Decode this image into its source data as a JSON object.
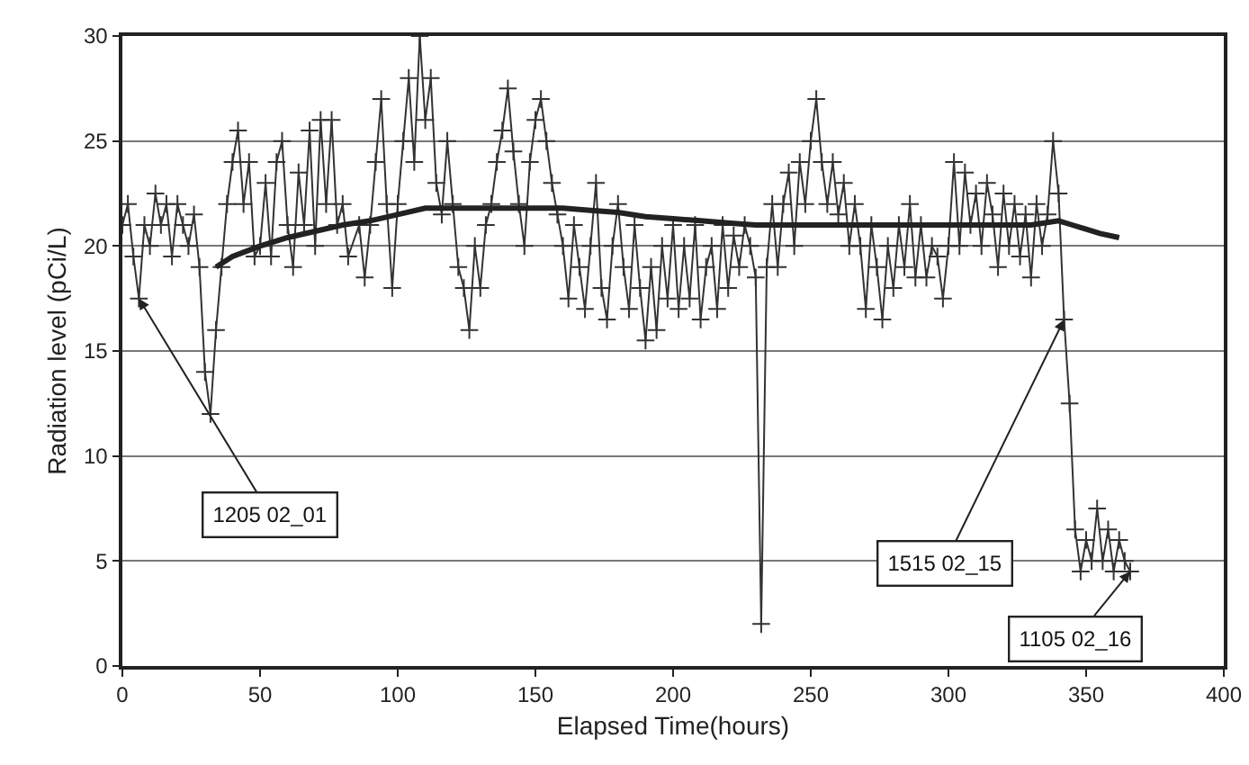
{
  "chart_data": {
    "type": "line",
    "xlabel": "Elapsed Time(hours)",
    "ylabel": "Radiation level (pCi/L)",
    "xlim": [
      0,
      400
    ],
    "xticks": [
      0,
      50,
      100,
      150,
      200,
      250,
      300,
      350,
      400
    ],
    "ylim": [
      0,
      30
    ],
    "yticks": [
      0,
      5,
      10,
      15,
      20,
      25,
      30
    ],
    "grid": "y",
    "marker": "cross",
    "series": [
      {
        "color": "#333333",
        "x": [
          0,
          2,
          4,
          6,
          8,
          10,
          12,
          14,
          16,
          18,
          20,
          22,
          24,
          26,
          28,
          30,
          32,
          34,
          36,
          38,
          40,
          42,
          44,
          46,
          48,
          50,
          52,
          54,
          56,
          58,
          60,
          62,
          64,
          66,
          68,
          70,
          72,
          74,
          76,
          78,
          80,
          82,
          86,
          88,
          90,
          92,
          94,
          96,
          98,
          100,
          102,
          104,
          106,
          108,
          110,
          112,
          114,
          116,
          118,
          120,
          122,
          124,
          126,
          128,
          130,
          132,
          134,
          136,
          138,
          140,
          142,
          144,
          146,
          148,
          150,
          152,
          154,
          156,
          158,
          160,
          162,
          164,
          166,
          168,
          170,
          172,
          174,
          176,
          178,
          180,
          182,
          184,
          186,
          188,
          190,
          192,
          194,
          196,
          198,
          200,
          202,
          204,
          206,
          208,
          210,
          212,
          214,
          216,
          218,
          220,
          222,
          224,
          226,
          228,
          230,
          232,
          234,
          236,
          238,
          240,
          242,
          244,
          246,
          248,
          250,
          252,
          254,
          256,
          258,
          260,
          262,
          264,
          266,
          268,
          270,
          272,
          274,
          276,
          278,
          280,
          282,
          284,
          286,
          288,
          290,
          292,
          294,
          296,
          298,
          300,
          302,
          304,
          306,
          308,
          310,
          312,
          314,
          316,
          318,
          320,
          322,
          324,
          326,
          328,
          330,
          332,
          334,
          336,
          338,
          340,
          342,
          344,
          346,
          348,
          350,
          352,
          354,
          356,
          358,
          360,
          362,
          364,
          366
        ],
        "values": [
          21,
          22,
          19.5,
          17.5,
          21,
          20,
          22.5,
          21,
          22,
          19.5,
          22,
          21,
          20,
          21.5,
          19,
          14,
          12,
          16,
          19,
          22,
          24,
          25.5,
          22,
          24,
          19.5,
          20,
          23,
          19.5,
          24,
          25,
          21,
          19,
          23.5,
          21,
          25.5,
          20,
          26,
          22,
          26,
          21,
          22,
          19.5,
          21,
          18.5,
          21,
          24,
          27,
          22,
          18,
          22,
          25,
          28,
          24,
          30,
          26,
          28,
          23,
          21.5,
          25,
          22,
          19,
          18,
          16,
          20,
          18,
          21,
          22,
          24,
          25.5,
          27.5,
          24.5,
          22,
          20,
          24,
          26,
          27,
          25,
          23,
          21.5,
          20,
          17.5,
          21,
          19,
          17,
          20,
          23,
          18,
          16.5,
          20,
          22,
          19,
          17,
          21,
          18,
          15.5,
          19,
          16,
          20,
          17.5,
          21,
          17,
          20,
          17.5,
          21,
          16.5,
          19,
          20,
          17,
          21,
          18,
          20.5,
          19,
          21,
          20,
          18.5,
          2,
          19,
          22,
          19,
          22,
          23.5,
          20,
          24,
          22,
          25,
          27,
          24,
          22,
          24,
          21.5,
          23,
          20,
          22,
          20,
          17,
          21,
          19,
          16.5,
          20,
          18,
          21,
          19,
          22,
          18.5,
          21,
          18.5,
          20,
          19.5,
          17.5,
          20,
          24,
          20,
          23.5,
          21,
          22.5,
          20,
          23,
          21.5,
          19,
          22.5,
          20,
          22,
          19.5,
          21.5,
          18.5,
          22,
          20,
          21.5,
          25,
          22.5,
          16.5,
          12.5,
          6.5,
          4.5,
          6,
          5,
          7.5,
          5,
          6.5,
          4.5,
          6,
          5,
          4.5
        ]
      },
      {
        "color": "#222222",
        "marker": "none",
        "x": [
          34,
          40,
          50,
          60,
          70,
          80,
          90,
          100,
          110,
          120,
          130,
          140,
          150,
          160,
          170,
          180,
          190,
          200,
          210,
          220,
          230,
          240,
          250,
          260,
          270,
          280,
          290,
          300,
          310,
          320,
          330,
          340,
          345,
          350,
          355,
          362
        ],
        "values": [
          19,
          19.5,
          20,
          20.4,
          20.7,
          21,
          21.2,
          21.5,
          21.8,
          21.8,
          21.8,
          21.8,
          21.8,
          21.8,
          21.7,
          21.6,
          21.4,
          21.3,
          21.2,
          21.1,
          21,
          21,
          21,
          21,
          21,
          21,
          21,
          21,
          21,
          21,
          21,
          21.2,
          21,
          20.8,
          20.6,
          20.4
        ]
      }
    ],
    "annotations": [
      {
        "text": "1205 02_01",
        "x": 6,
        "y": 17.5
      },
      {
        "text": "1515 02_15",
        "x": 342,
        "y": 16.5
      },
      {
        "text": "1105 02_16",
        "x": 366,
        "y": 4.5
      }
    ]
  }
}
